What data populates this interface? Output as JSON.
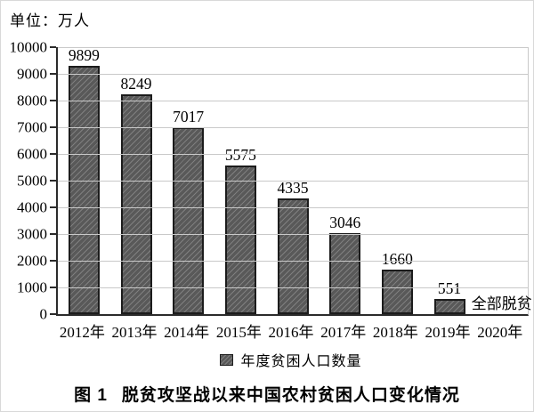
{
  "figure": {
    "unit_label": "单位：万人",
    "caption": {
      "prefix": "图 1",
      "text": "脱贫攻坚战以来中国农村贫困人口变化情况"
    }
  },
  "chart_data": {
    "type": "bar",
    "title": "脱贫攻坚战以来中国农村贫困人口变化情况",
    "unit": "万人",
    "categories": [
      "2012年",
      "2013年",
      "2014年",
      "2015年",
      "2016年",
      "2017年",
      "2018年",
      "2019年",
      "2020年"
    ],
    "values": [
      9899,
      8249,
      7017,
      5575,
      4335,
      3046,
      1660,
      551,
      null
    ],
    "annotations": [
      {
        "category": "2020年",
        "text": "全部脱贫"
      }
    ],
    "legend": [
      "年度贫困人口数量"
    ],
    "legend_position": "bottom",
    "xlabel": "",
    "ylabel": "万人",
    "ylim": [
      0,
      10000
    ],
    "ytick_step": 1000,
    "grid": "horizontal-light",
    "bar_style": "diagonal-hatch",
    "colors": {
      "bar_fill": "#595959",
      "bar_hatch": "#7f7f7f",
      "bar_border": "#1c1c1c",
      "gridline": "#c9c9c9",
      "axis": "#2b2b2b",
      "text": "#000000"
    }
  }
}
